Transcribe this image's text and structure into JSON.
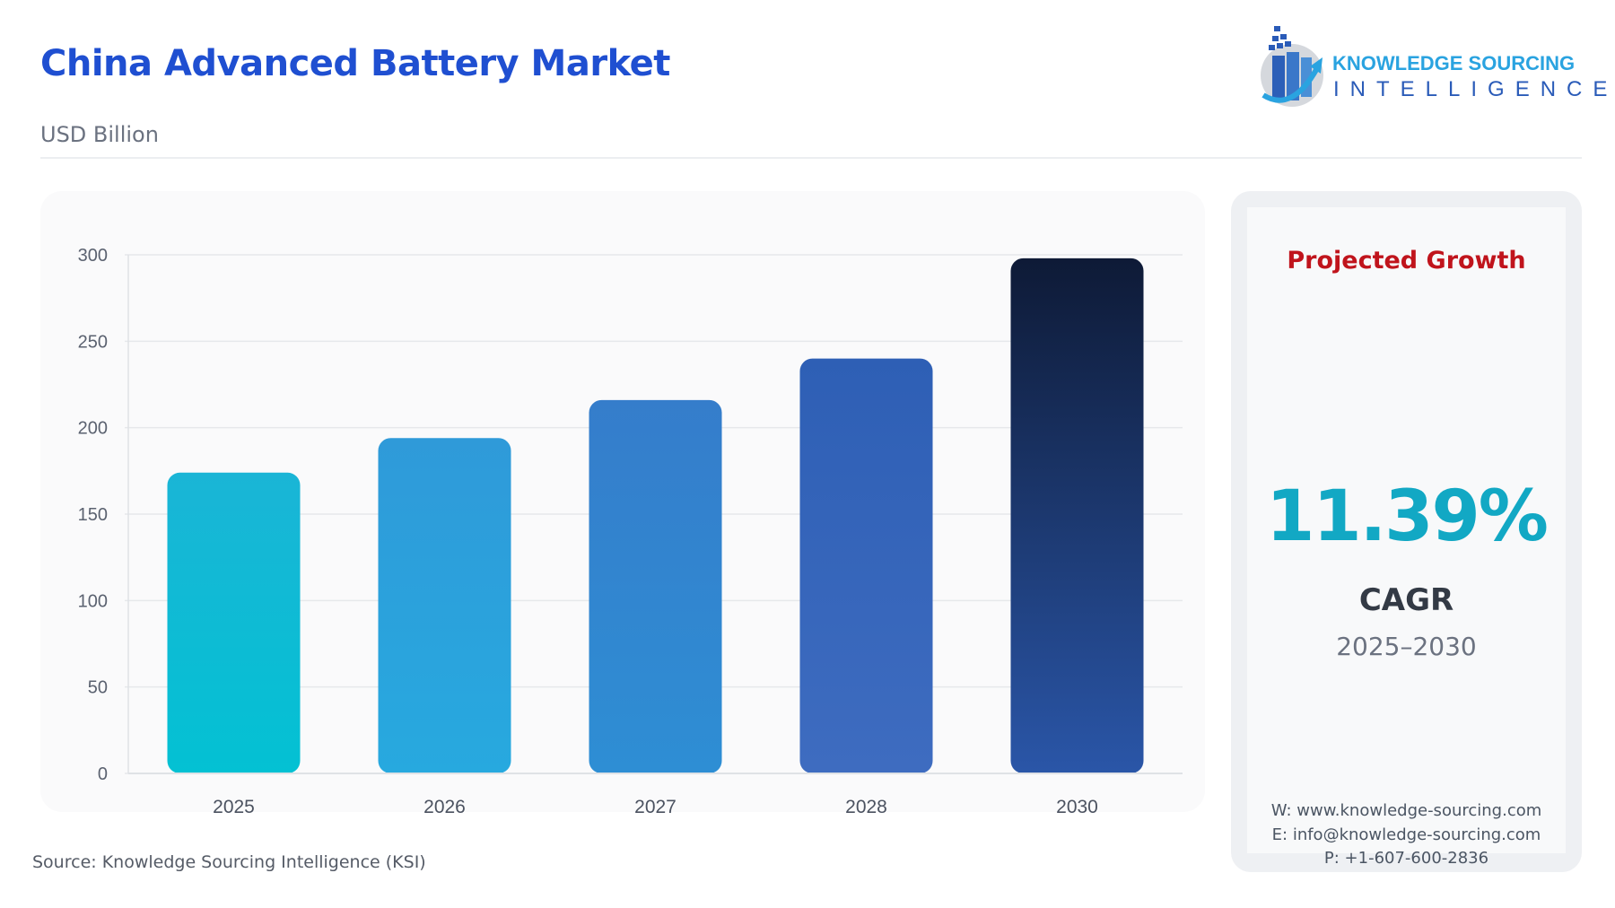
{
  "header": {
    "title": "China Advanced Battery Market",
    "subtitle": "USD Billion"
  },
  "logo": {
    "line1": "KNOWLEDGE SOURCING",
    "line2": "INTELLIGENCE"
  },
  "source": "Source: Knowledge Sourcing Intelligence (KSI)",
  "side_panel": {
    "title": "Projected Growth",
    "value": "11.39%",
    "label": "CAGR",
    "period": "2025–2030",
    "website": "W: www.knowledge-sourcing.com",
    "email": "E: info@knowledge-sourcing.com",
    "phone": "P: +1-607-600-2836",
    "title_color": "#c0141c",
    "value_color": "#12a8c4"
  },
  "chart_data": {
    "type": "bar",
    "categories": [
      "2025",
      "2026",
      "2027",
      "2028",
      "2030"
    ],
    "values": [
      174,
      194,
      216,
      240,
      298
    ],
    "title": "",
    "xlabel": "",
    "ylabel": "",
    "ylim": [
      0,
      300
    ],
    "yticks": [
      "0",
      "50",
      "100",
      "150",
      "200",
      "250",
      "300"
    ],
    "grid": true,
    "colors": [
      [
        "#1ab5d6",
        "#03c1d3"
      ],
      [
        "#2f9ad9",
        "#27a9df"
      ],
      [
        "#357dcb",
        "#2e8ed4"
      ],
      [
        "#2e5fb5",
        "#3e6cc0"
      ],
      [
        "#0e1a36",
        "#2a56a8"
      ]
    ]
  }
}
